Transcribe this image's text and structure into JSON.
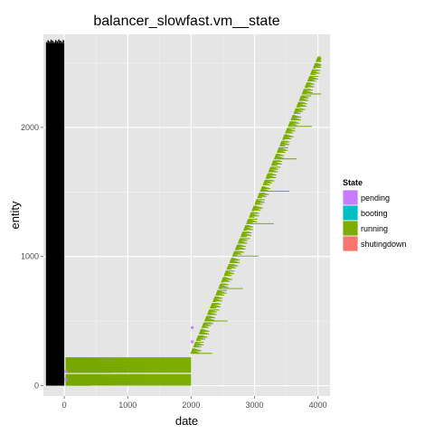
{
  "chart_data": {
    "type": "gantt",
    "title": "balancer_slowfast.vm__state",
    "xlabel": "date",
    "ylabel": "entity",
    "xlim": [
      -330,
      4190
    ],
    "ylim": [
      -80,
      2720
    ],
    "x_ticks": [
      0,
      1000,
      2000,
      3000,
      4000
    ],
    "x_tick_labels": [
      "0",
      "1000",
      "2000",
      "3000",
      "4000"
    ],
    "y_ticks": [
      0,
      1000,
      2000
    ],
    "y_tick_labels": [
      "0",
      "1000",
      "2000"
    ],
    "grid": true,
    "legend": {
      "title": "State",
      "position": "right",
      "entries": [
        {
          "label": "pending",
          "color": "#c77cff"
        },
        {
          "label": "booting",
          "color": "#00bfc4"
        },
        {
          "label": "running",
          "color": "#7cae00"
        },
        {
          "label": "shutingdown",
          "color": "#f8766d"
        }
      ]
    },
    "background_block": {
      "state": "other",
      "color": "#000000",
      "x_start": -290,
      "x_end": 0,
      "entity_start": 0,
      "entity_end": 2650
    },
    "initial_running_groups": [
      {
        "entity_start": 0,
        "entity_end": 90,
        "x_start": 20,
        "x_end": 2000
      },
      {
        "entity_start": 100,
        "entity_end": 220,
        "x_start": 20,
        "x_end": 2000
      }
    ],
    "scale_up_staircase": {
      "state": "running",
      "x_start": 1990,
      "x_end": 4010,
      "entity_start": 250,
      "entity_end": 2560,
      "typical_run_length": 300
    },
    "pending_markers": [
      {
        "entity": 440,
        "x": 2010
      },
      {
        "entity": 330,
        "x": 2010
      },
      {
        "entity": 100,
        "x": 20
      },
      {
        "entity": 40,
        "x": 20
      }
    ]
  }
}
